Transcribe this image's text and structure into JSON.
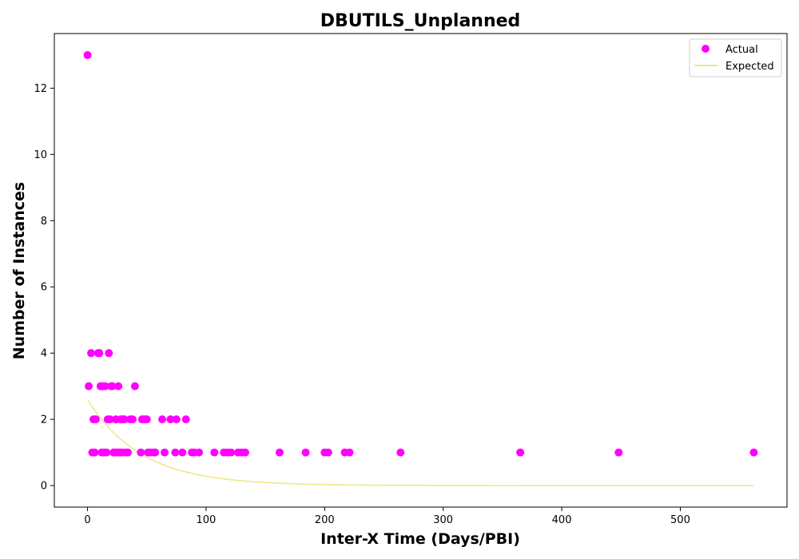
{
  "chart_data": {
    "type": "scatter",
    "title": "DBUTILS_Unplanned",
    "xlabel": "Inter-X Time (Days/PBI)",
    "ylabel": "Number of Instances",
    "xlim": [
      -28,
      590
    ],
    "ylim": [
      -0.65,
      13.65
    ],
    "xticks": [
      0,
      100,
      200,
      300,
      400,
      500
    ],
    "yticks": [
      0,
      2,
      4,
      6,
      8,
      10,
      12
    ],
    "grid": false,
    "legend_position": "top-right",
    "colors": {
      "actual": "#ff00ff",
      "expected": "#f0e68c"
    },
    "series": [
      {
        "name": "Actual",
        "kind": "scatter",
        "points": [
          [
            0,
            13
          ],
          [
            1,
            3
          ],
          [
            3,
            4
          ],
          [
            4,
            1
          ],
          [
            5,
            2
          ],
          [
            6,
            1
          ],
          [
            7,
            2
          ],
          [
            9,
            4
          ],
          [
            10,
            4
          ],
          [
            11,
            3
          ],
          [
            12,
            1
          ],
          [
            13,
            3
          ],
          [
            14,
            1
          ],
          [
            15,
            3
          ],
          [
            16,
            1
          ],
          [
            17,
            2
          ],
          [
            18,
            4
          ],
          [
            19,
            2
          ],
          [
            20,
            3
          ],
          [
            21,
            3
          ],
          [
            22,
            1
          ],
          [
            23,
            1
          ],
          [
            24,
            2
          ],
          [
            25,
            1
          ],
          [
            26,
            3
          ],
          [
            27,
            1
          ],
          [
            28,
            2
          ],
          [
            29,
            1
          ],
          [
            30,
            2
          ],
          [
            31,
            2
          ],
          [
            32,
            1
          ],
          [
            34,
            1
          ],
          [
            36,
            2
          ],
          [
            38,
            2
          ],
          [
            40,
            3
          ],
          [
            45,
            1
          ],
          [
            46,
            2
          ],
          [
            48,
            2
          ],
          [
            50,
            2
          ],
          [
            51,
            1
          ],
          [
            53,
            1
          ],
          [
            56,
            1
          ],
          [
            57,
            1
          ],
          [
            63,
            2
          ],
          [
            65,
            1
          ],
          [
            70,
            2
          ],
          [
            74,
            1
          ],
          [
            75,
            2
          ],
          [
            80,
            1
          ],
          [
            83,
            2
          ],
          [
            88,
            1
          ],
          [
            90,
            1
          ],
          [
            94,
            1
          ],
          [
            107,
            1
          ],
          [
            115,
            1
          ],
          [
            118,
            1
          ],
          [
            121,
            1
          ],
          [
            127,
            1
          ],
          [
            130,
            1
          ],
          [
            133,
            1
          ],
          [
            162,
            1
          ],
          [
            184,
            1
          ],
          [
            200,
            1
          ],
          [
            203,
            1
          ],
          [
            217,
            1
          ],
          [
            221,
            1
          ],
          [
            264,
            1
          ],
          [
            365,
            1
          ],
          [
            448,
            1
          ],
          [
            562,
            1
          ]
        ]
      },
      {
        "name": "Expected",
        "kind": "line",
        "amplitude": 2.6,
        "decay": 0.0222,
        "x_range": [
          0,
          562
        ]
      }
    ]
  }
}
